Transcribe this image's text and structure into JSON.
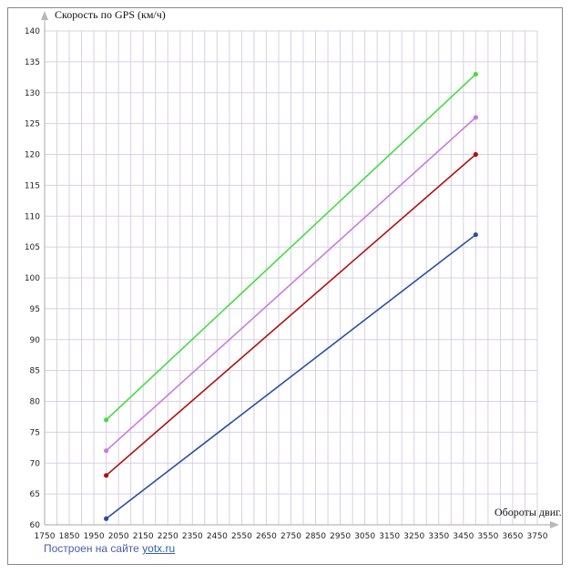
{
  "chart_data": {
    "type": "line",
    "ylabel": "Скорость по GPS (км/ч)",
    "xlabel": "Обороты двиг.",
    "xlim": [
      1750,
      3750
    ],
    "ylim": [
      60,
      140
    ],
    "x_ticks": [
      1750,
      1850,
      1950,
      2050,
      2150,
      2250,
      2350,
      2450,
      2550,
      2650,
      2750,
      2850,
      2950,
      3050,
      3150,
      3250,
      3350,
      3450,
      3550,
      3650,
      3750
    ],
    "y_ticks": [
      60,
      65,
      70,
      75,
      80,
      85,
      90,
      95,
      100,
      105,
      110,
      115,
      120,
      125,
      130,
      135,
      140
    ],
    "grid": true,
    "legend": false,
    "series": [
      {
        "color": "#2a4fa0",
        "x": [
          2000,
          3500
        ],
        "values": [
          61,
          107
        ]
      },
      {
        "color": "#b01010",
        "x": [
          2000,
          3500
        ],
        "values": [
          68,
          120
        ]
      },
      {
        "color": "#c87ae0",
        "x": [
          2000,
          3500
        ],
        "values": [
          72,
          126
        ]
      },
      {
        "color": "#44dd44",
        "x": [
          2000,
          3500
        ],
        "values": [
          77,
          133
        ]
      }
    ]
  },
  "footer": {
    "credit_text": "Построен на сайте ",
    "credit_link": "yotx.ru"
  },
  "colors": {
    "grid": "#d8d0e4",
    "axis": "#b8b8b8"
  }
}
